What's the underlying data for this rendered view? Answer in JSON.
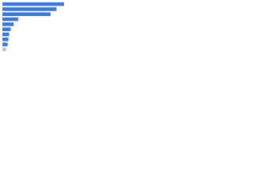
{
  "chart_data": {
    "type": "bar",
    "orientation": "horizontal",
    "values": [
      82,
      72,
      64,
      21,
      15,
      11,
      9,
      8,
      7,
      5
    ],
    "colors": [
      "#3b78d4",
      "#3b78d4",
      "#3b78d4",
      "#3b78d4",
      "#3b78d4",
      "#3b78d4",
      "#3b78d4",
      "#3b78d4",
      "#3b78d4",
      "#b9c6da"
    ],
    "xlim": [
      0,
      100
    ]
  }
}
